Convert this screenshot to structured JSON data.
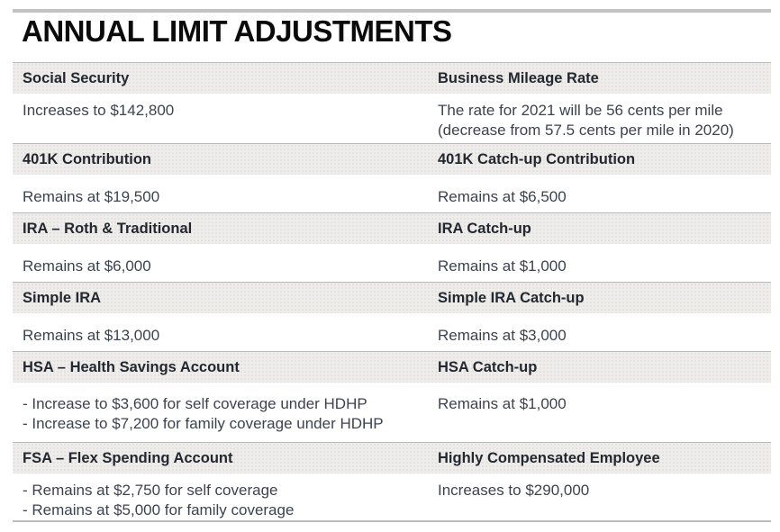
{
  "title": "ANNUAL LIMIT ADJUSTMENTS",
  "colors": {
    "top_rule": "#c3c3c3",
    "bottom_rule": "#bdbdbd",
    "header_band_bg": "#eeedeb",
    "header_text": "#23272f",
    "body_text": "#3c4350",
    "title_text": "#0b0b0b"
  },
  "table": {
    "rows": [
      {
        "left": {
          "header": "Social Security",
          "lines": [
            "Increases to $142,800"
          ]
        },
        "right": {
          "header": "Business Mileage Rate",
          "lines": [
            "The rate for 2021 will be 56 cents per mile",
            "(decrease from 57.5 cents per mile in 2020)"
          ]
        }
      },
      {
        "left": {
          "header": "401K Contribution",
          "lines": [
            "Remains at $19,500"
          ]
        },
        "right": {
          "header": "401K Catch-up Contribution",
          "lines": [
            "Remains at $6,500"
          ]
        }
      },
      {
        "left": {
          "header": "IRA – Roth & Traditional",
          "lines": [
            "Remains at $6,000"
          ]
        },
        "right": {
          "header": "IRA Catch-up",
          "lines": [
            "Remains at $1,000"
          ]
        }
      },
      {
        "left": {
          "header": "Simple IRA",
          "lines": [
            "Remains at $13,000"
          ]
        },
        "right": {
          "header": "Simple IRA Catch-up",
          "lines": [
            "Remains at $3,000"
          ]
        }
      },
      {
        "left": {
          "header": "HSA – Health Savings Account",
          "lines": [
            "- Increase to $3,600 for self coverage under HDHP",
            "- Increase to $7,200 for family coverage under HDHP"
          ]
        },
        "right": {
          "header": "HSA Catch-up",
          "lines": [
            "Remains at $1,000"
          ]
        }
      },
      {
        "left": {
          "header": "FSA – Flex Spending Account",
          "lines": [
            "- Remains at $2,750 for self coverage",
            "- Remains at $5,000 for family coverage"
          ]
        },
        "right": {
          "header": "Highly Compensated Employee",
          "lines": [
            "Increases to $290,000"
          ]
        }
      }
    ]
  }
}
